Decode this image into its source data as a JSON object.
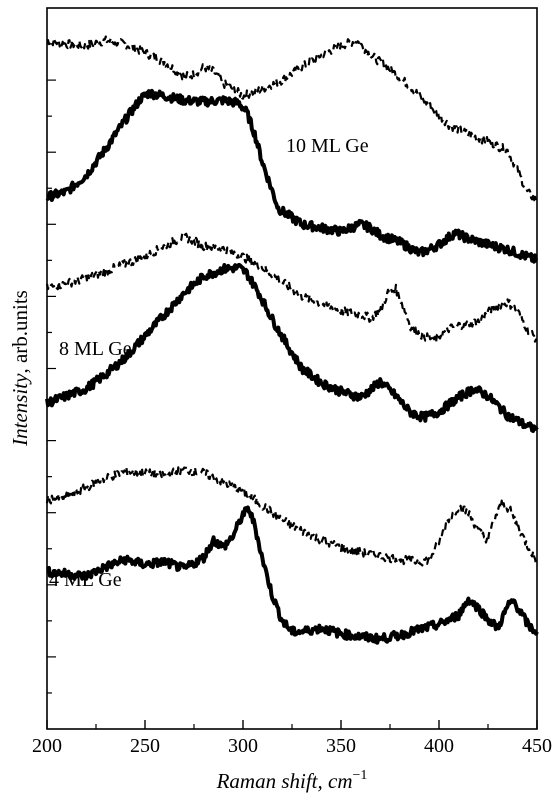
{
  "chart_data": {
    "type": "line",
    "xlabel": "Raman shift, cm",
    "xlabel_sup": "−1",
    "ylabel_italic": "Intensity",
    "ylabel_rest": ", arb.units",
    "xlim": [
      200,
      450
    ],
    "x_ticks": [
      "200",
      "250",
      "300",
      "350",
      "400",
      "450"
    ],
    "y_tick_labels": "none",
    "grid": false,
    "legend": "none",
    "annotations": [
      "10 ML Ge",
      "8 ML Ge",
      "4 ML Ge"
    ],
    "series": [
      {
        "style": "dashed",
        "x": [
          200,
          210,
          220,
          230,
          240,
          250,
          260,
          270,
          275,
          280,
          285,
          290,
          295,
          300,
          310,
          320,
          330,
          340,
          350,
          358,
          365,
          375,
          385,
          395,
          405,
          415,
          425,
          435,
          440,
          445,
          450
        ],
        "y": [
          0.955,
          0.95,
          0.948,
          0.955,
          0.95,
          0.938,
          0.925,
          0.905,
          0.908,
          0.918,
          0.912,
          0.895,
          0.888,
          0.878,
          0.888,
          0.9,
          0.918,
          0.935,
          0.948,
          0.955,
          0.935,
          0.915,
          0.892,
          0.865,
          0.838,
          0.825,
          0.815,
          0.802,
          0.775,
          0.745,
          0.732
        ]
      },
      {
        "style": "solid",
        "x": [
          200,
          210,
          220,
          230,
          240,
          248,
          252,
          260,
          270,
          280,
          290,
          298,
          302,
          306,
          310,
          318,
          330,
          340,
          350,
          360,
          365,
          370,
          380,
          390,
          395,
          400,
          408,
          415,
          425,
          435,
          445,
          450
        ],
        "y": [
          0.738,
          0.745,
          0.768,
          0.805,
          0.845,
          0.875,
          0.882,
          0.878,
          0.872,
          0.87,
          0.872,
          0.868,
          0.855,
          0.825,
          0.785,
          0.722,
          0.7,
          0.695,
          0.69,
          0.7,
          0.695,
          0.685,
          0.675,
          0.66,
          0.665,
          0.672,
          0.688,
          0.68,
          0.672,
          0.665,
          0.655,
          0.65
        ]
      },
      {
        "style": "dashed",
        "x": [
          200,
          210,
          220,
          230,
          240,
          250,
          260,
          270,
          275,
          280,
          290,
          300,
          310,
          320,
          330,
          340,
          350,
          360,
          365,
          370,
          374,
          378,
          382,
          386,
          392,
          398,
          405,
          410,
          420,
          428,
          435,
          440,
          445,
          450
        ],
        "y": [
          0.612,
          0.618,
          0.625,
          0.635,
          0.645,
          0.655,
          0.67,
          0.683,
          0.677,
          0.67,
          0.666,
          0.655,
          0.64,
          0.62,
          0.6,
          0.59,
          0.58,
          0.575,
          0.57,
          0.58,
          0.605,
          0.61,
          0.585,
          0.555,
          0.545,
          0.54,
          0.555,
          0.56,
          0.565,
          0.585,
          0.592,
          0.58,
          0.555,
          0.54
        ]
      },
      {
        "style": "solid",
        "x": [
          200,
          210,
          220,
          230,
          240,
          250,
          260,
          270,
          280,
          290,
          298,
          302,
          308,
          315,
          322,
          330,
          340,
          350,
          360,
          365,
          370,
          378,
          385,
          392,
          400,
          410,
          418,
          425,
          435,
          445,
          450
        ],
        "y": [
          0.452,
          0.462,
          0.472,
          0.492,
          0.515,
          0.545,
          0.575,
          0.605,
          0.628,
          0.638,
          0.64,
          0.632,
          0.605,
          0.568,
          0.535,
          0.5,
          0.48,
          0.468,
          0.46,
          0.47,
          0.482,
          0.462,
          0.44,
          0.432,
          0.44,
          0.46,
          0.472,
          0.462,
          0.435,
          0.42,
          0.415
        ]
      },
      {
        "style": "dashed",
        "x": [
          200,
          210,
          220,
          230,
          240,
          250,
          260,
          270,
          280,
          290,
          300,
          310,
          320,
          330,
          340,
          350,
          360,
          370,
          380,
          390,
          395,
          400,
          405,
          410,
          415,
          420,
          425,
          428,
          432,
          436,
          440,
          445,
          450
        ],
        "y": [
          0.318,
          0.322,
          0.335,
          0.348,
          0.357,
          0.355,
          0.352,
          0.36,
          0.355,
          0.342,
          0.33,
          0.31,
          0.29,
          0.275,
          0.262,
          0.252,
          0.245,
          0.24,
          0.235,
          0.232,
          0.235,
          0.26,
          0.292,
          0.308,
          0.3,
          0.275,
          0.262,
          0.29,
          0.312,
          0.305,
          0.282,
          0.255,
          0.232
        ]
      },
      {
        "style": "solid",
        "x": [
          200,
          210,
          220,
          230,
          240,
          250,
          260,
          270,
          280,
          285,
          290,
          295,
          300,
          303,
          306,
          310,
          315,
          320,
          325,
          330,
          340,
          350,
          360,
          370,
          380,
          390,
          400,
          410,
          415,
          420,
          425,
          430,
          435,
          438,
          442,
          446,
          450
        ],
        "y": [
          0.218,
          0.215,
          0.212,
          0.225,
          0.235,
          0.228,
          0.232,
          0.222,
          0.238,
          0.262,
          0.252,
          0.268,
          0.298,
          0.305,
          0.282,
          0.235,
          0.185,
          0.15,
          0.135,
          0.135,
          0.14,
          0.132,
          0.128,
          0.125,
          0.13,
          0.138,
          0.145,
          0.158,
          0.18,
          0.168,
          0.152,
          0.14,
          0.17,
          0.178,
          0.16,
          0.142,
          0.135
        ]
      }
    ]
  }
}
